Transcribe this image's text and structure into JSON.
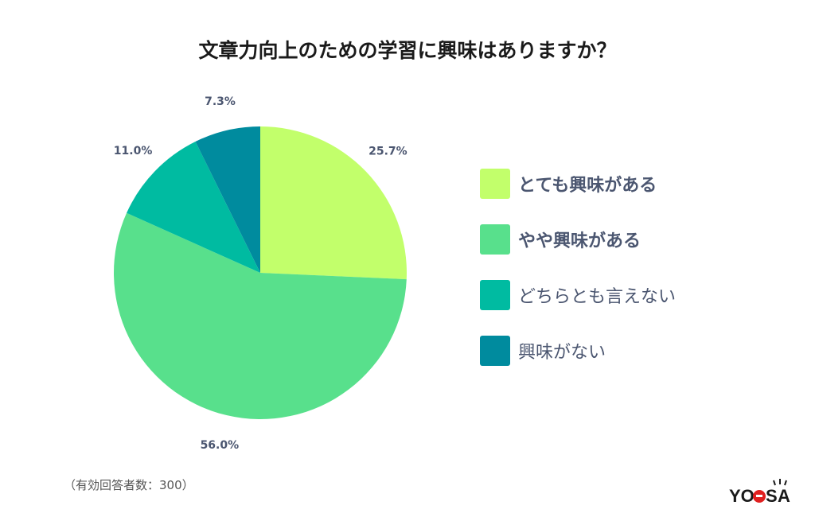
{
  "title": "文章力向上のための学習に興味はありますか？",
  "note": "（有効回答者数：300）",
  "logo": {
    "text_left": "YO",
    "text_mid": "S",
    "text_right": "A",
    "accent": "#e02020"
  },
  "chart_data": {
    "type": "pie",
    "title": "文章力向上のための学習に興味はありますか？",
    "start_angle_deg": 0,
    "direction": "clockwise",
    "slices": [
      {
        "label": "とても興味がある",
        "value": 25.7,
        "display": "25.7%",
        "color": "#c2ff6b"
      },
      {
        "label": "やや興味がある",
        "value": 56.0,
        "display": "56.0%",
        "color": "#58e08c"
      },
      {
        "label": "どちらとも言えない",
        "value": 11.0,
        "display": "11.0%",
        "color": "#00bba1"
      },
      {
        "label": "興味がない",
        "value": 7.3,
        "display": "7.3%",
        "color": "#008b9e"
      }
    ],
    "legend_position": "right"
  }
}
